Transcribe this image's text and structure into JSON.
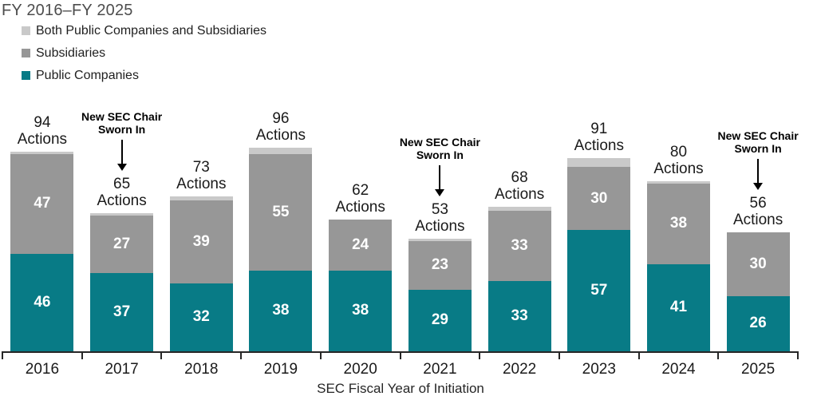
{
  "title": "FY 2016–FY 2025",
  "legend": {
    "items": [
      {
        "label": "Both Public Companies and Subsidiaries",
        "color": "#c9c9c9"
      },
      {
        "label": "Subsidiaries",
        "color": "#979797"
      },
      {
        "label": "Public Companies",
        "color": "#087b86"
      }
    ]
  },
  "chart_data": {
    "type": "bar",
    "stacked": true,
    "title": "FY 2016–FY 2025",
    "xlabel": "SEC Fiscal Year of Initiation",
    "ylabel": "",
    "y_axis_shown": false,
    "grid": false,
    "legend_position": "top-left",
    "ylim": [
      0,
      100
    ],
    "categories": [
      "2016",
      "2017",
      "2018",
      "2019",
      "2020",
      "2021",
      "2022",
      "2023",
      "2024",
      "2025"
    ],
    "series": [
      {
        "name": "Public Companies",
        "color": "#087b86",
        "label_color": "#ffffff",
        "values": [
          46,
          37,
          32,
          38,
          38,
          29,
          33,
          57,
          41,
          26
        ]
      },
      {
        "name": "Subsidiaries",
        "color": "#979797",
        "label_color": "#ffffff",
        "values": [
          47,
          27,
          39,
          55,
          24,
          23,
          33,
          30,
          38,
          30
        ]
      },
      {
        "name": "Both Public Companies and Subsidiaries",
        "color": "#c9c9c9",
        "label_color": null,
        "values": [
          1,
          1,
          2,
          3,
          0,
          1,
          2,
          4,
          1,
          0
        ]
      }
    ],
    "totals": [
      94,
      65,
      73,
      96,
      62,
      53,
      68,
      91,
      80,
      56
    ],
    "total_label_suffix": "Actions",
    "annotations": [
      {
        "category": "2017",
        "text": "New SEC Chair Sworn In"
      },
      {
        "category": "2021",
        "text": "New SEC Chair Sworn In"
      },
      {
        "category": "2025",
        "text": "New SEC Chair Sworn In"
      }
    ]
  }
}
